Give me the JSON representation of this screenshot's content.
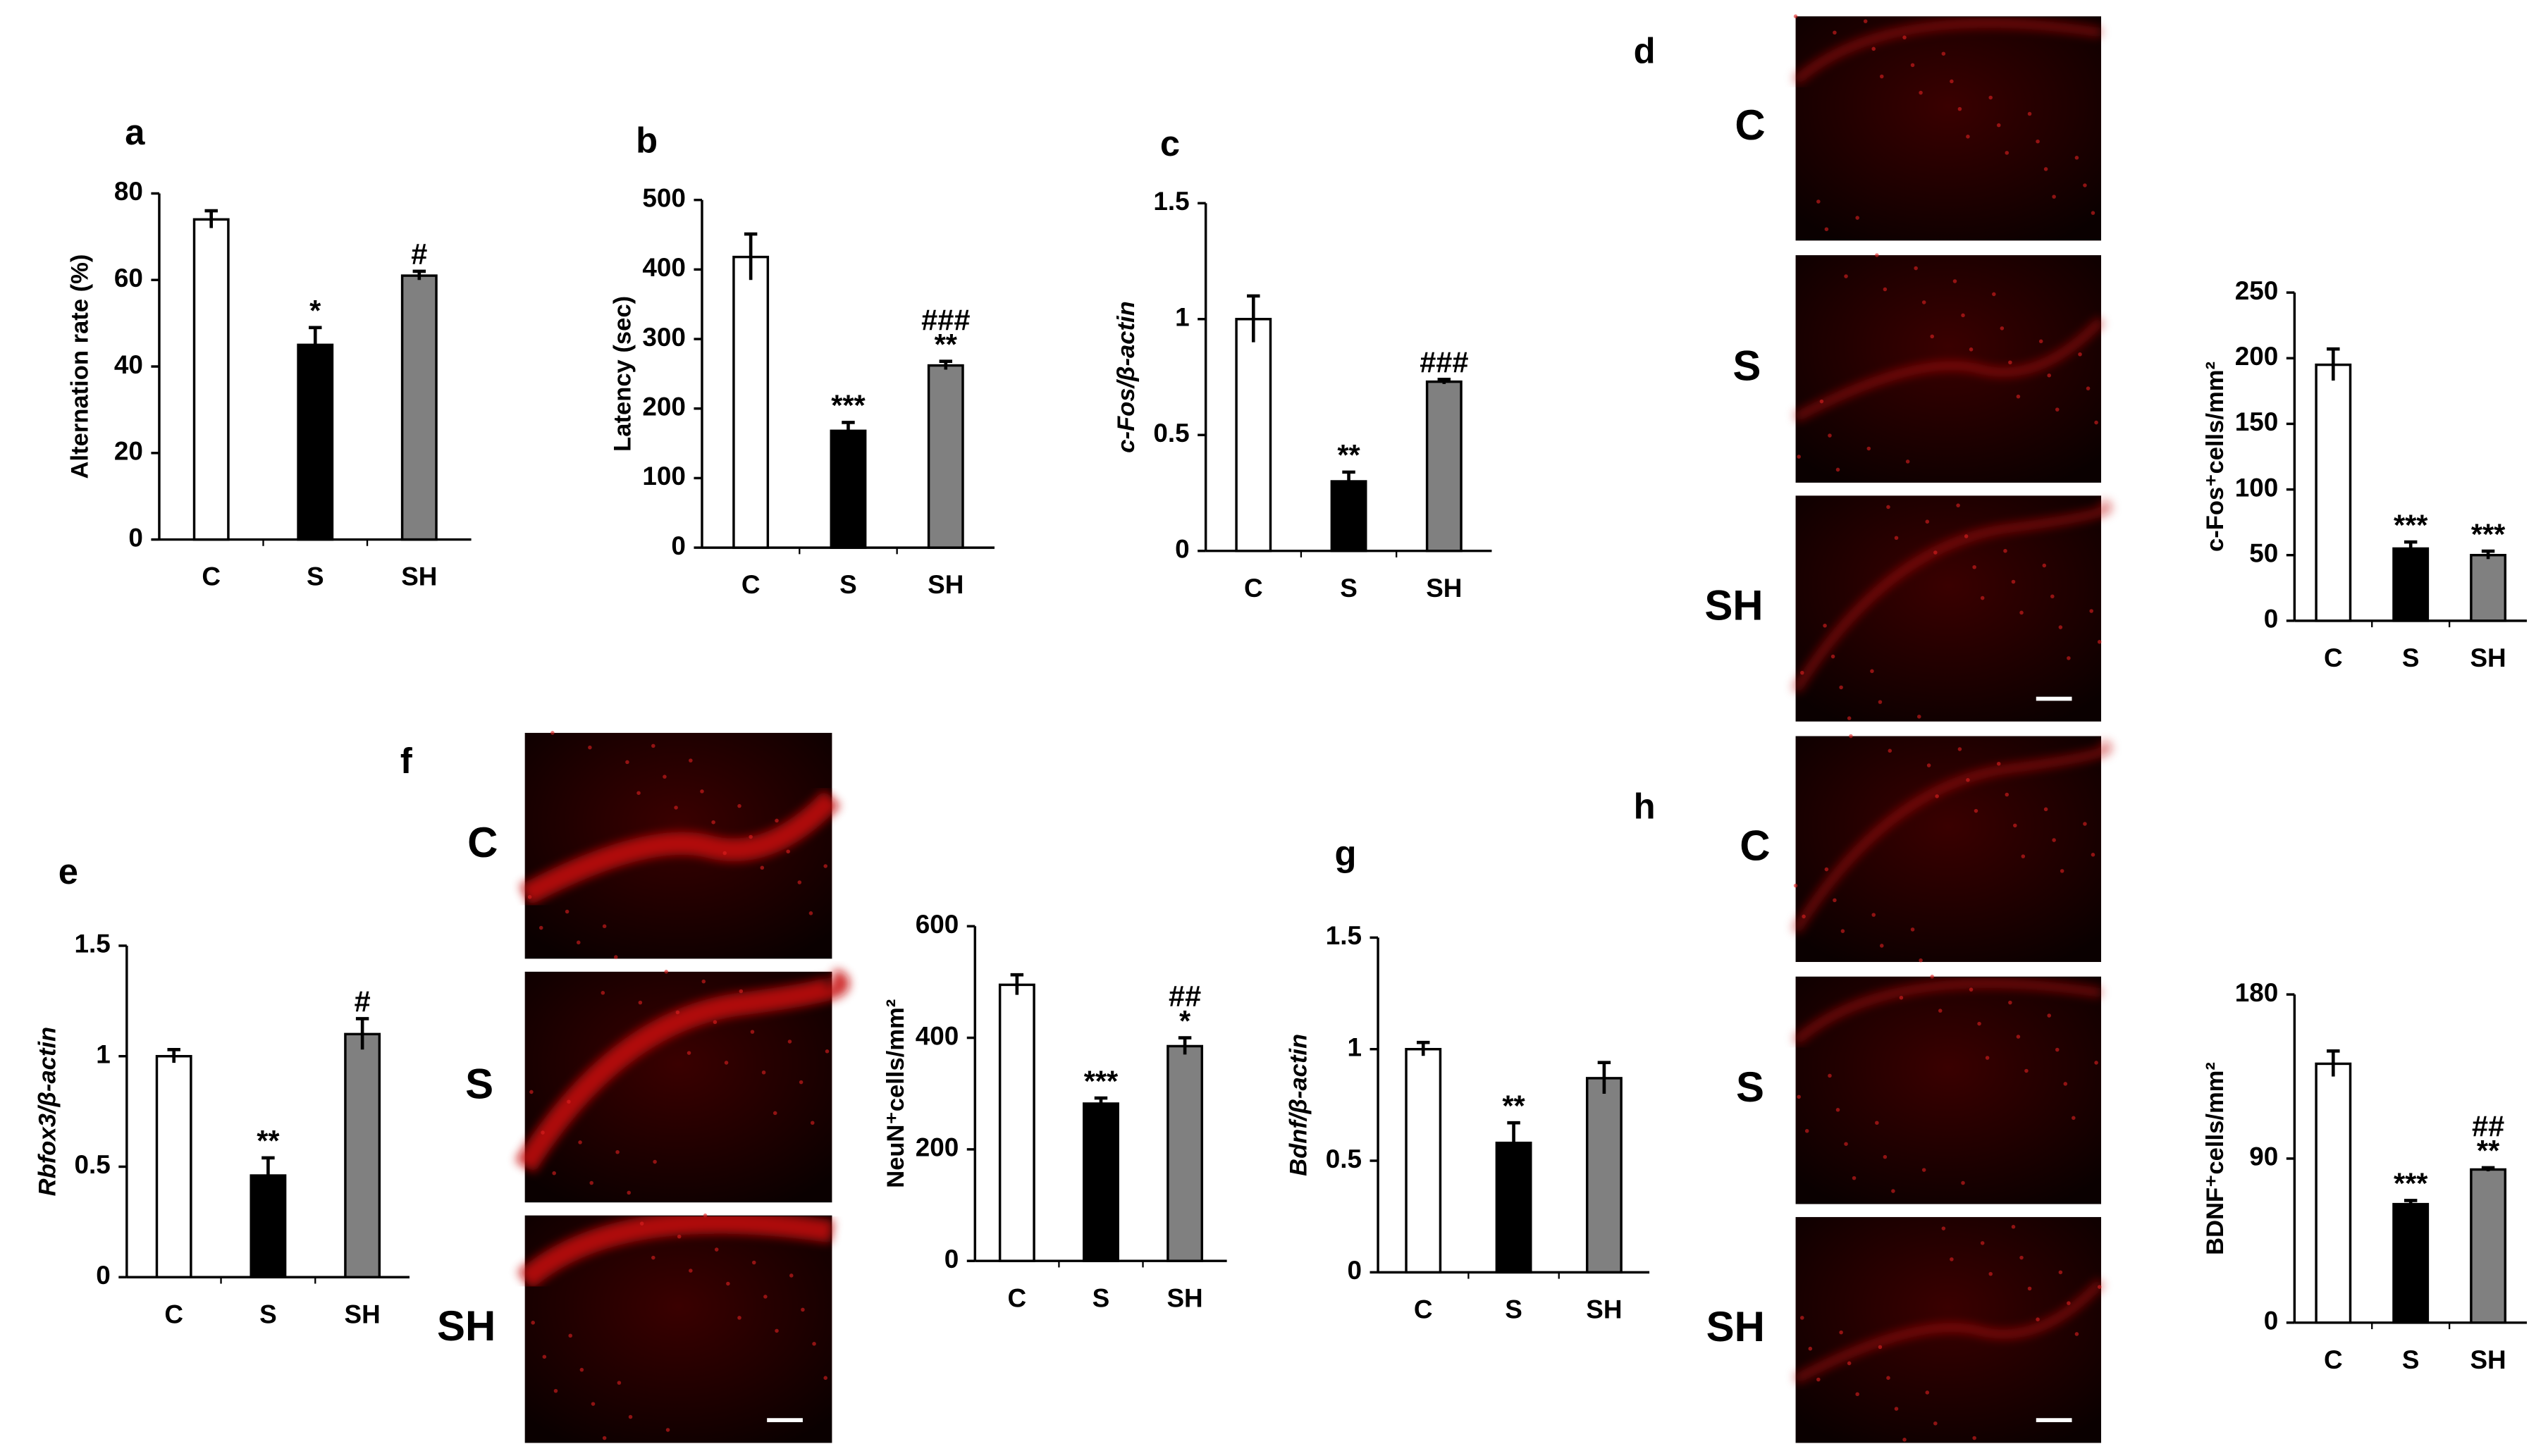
{
  "chart_data": [
    {
      "type": "bar",
      "panel": "a",
      "ylabel": "Alternation rate (%)",
      "ylabel_italic": false,
      "categories": [
        "C",
        "S",
        "SH"
      ],
      "values": [
        74,
        45,
        61
      ],
      "errors": [
        2,
        4,
        1
      ],
      "annotations": [
        null,
        [
          "*"
        ],
        [
          "#"
        ]
      ],
      "colors": [
        "#ffffff",
        "#000000",
        "#808080"
      ],
      "ylim": [
        0,
        80
      ],
      "yticks": [
        0,
        20,
        40,
        60,
        80
      ]
    },
    {
      "type": "bar",
      "panel": "b",
      "ylabel": "Latency (sec)",
      "ylabel_italic": false,
      "categories": [
        "C",
        "S",
        "SH"
      ],
      "values": [
        418,
        168,
        262
      ],
      "errors": [
        33,
        12,
        6
      ],
      "annotations": [
        null,
        [
          "***"
        ],
        [
          "###",
          "**"
        ]
      ],
      "colors": [
        "#ffffff",
        "#000000",
        "#808080"
      ],
      "ylim": [
        0,
        500
      ],
      "yticks": [
        0,
        100,
        200,
        300,
        400,
        500
      ]
    },
    {
      "type": "bar",
      "panel": "c",
      "ylabel": "c-Fos/β-actin",
      "ylabel_italic": true,
      "categories": [
        "C",
        "S",
        "SH"
      ],
      "values": [
        1.0,
        0.3,
        0.73
      ],
      "errors": [
        0.1,
        0.04,
        0.01
      ],
      "annotations": [
        null,
        [
          "**"
        ],
        [
          "###"
        ]
      ],
      "colors": [
        "#ffffff",
        "#000000",
        "#808080"
      ],
      "ylim": [
        0,
        1.5
      ],
      "yticks": [
        0,
        0.5,
        1,
        1.5
      ]
    },
    {
      "type": "bar",
      "panel": "d",
      "ylabel": "c-Fos⁺cells/mm²",
      "ylabel_italic": false,
      "categories": [
        "C",
        "S",
        "SH"
      ],
      "values": [
        195,
        55,
        50
      ],
      "errors": [
        12,
        5,
        3
      ],
      "annotations": [
        null,
        [
          "***"
        ],
        [
          "***"
        ]
      ],
      "colors": [
        "#ffffff",
        "#000000",
        "#808080"
      ],
      "ylim": [
        0,
        250
      ],
      "yticks": [
        0,
        50,
        100,
        150,
        200,
        250
      ]
    },
    {
      "type": "bar",
      "panel": "e",
      "ylabel": "Rbfox3/β-actin",
      "ylabel_italic": true,
      "categories": [
        "C",
        "S",
        "SH"
      ],
      "values": [
        1.0,
        0.46,
        1.1
      ],
      "errors": [
        0.03,
        0.08,
        0.07
      ],
      "annotations": [
        null,
        [
          "**"
        ],
        [
          "#"
        ]
      ],
      "colors": [
        "#ffffff",
        "#000000",
        "#808080"
      ],
      "ylim": [
        0,
        1.5
      ],
      "yticks": [
        0,
        0.5,
        1,
        1.5
      ]
    },
    {
      "type": "bar",
      "panel": "f",
      "ylabel": "NeuN⁺cells/mm²",
      "ylabel_italic": false,
      "categories": [
        "C",
        "S",
        "SH"
      ],
      "values": [
        495,
        282,
        385
      ],
      "errors": [
        18,
        10,
        15
      ],
      "annotations": [
        null,
        [
          "***"
        ],
        [
          "##",
          "*"
        ]
      ],
      "colors": [
        "#ffffff",
        "#000000",
        "#808080"
      ],
      "ylim": [
        0,
        600
      ],
      "yticks": [
        0,
        200,
        400,
        600
      ]
    },
    {
      "type": "bar",
      "panel": "g",
      "ylabel": "Bdnf/β-actin",
      "ylabel_italic": true,
      "categories": [
        "C",
        "S",
        "SH"
      ],
      "values": [
        1.0,
        0.58,
        0.87
      ],
      "errors": [
        0.03,
        0.09,
        0.07
      ],
      "annotations": [
        null,
        [
          "**"
        ],
        null
      ],
      "colors": [
        "#ffffff",
        "#000000",
        "#808080"
      ],
      "ylim": [
        0,
        1.5
      ],
      "yticks": [
        0,
        0.5,
        1,
        1.5
      ]
    },
    {
      "type": "bar",
      "panel": "h",
      "ylabel": "BDNF⁺cells/mm²",
      "ylabel_italic": false,
      "categories": [
        "C",
        "S",
        "SH"
      ],
      "values": [
        142,
        65,
        84
      ],
      "errors": [
        7,
        2,
        1
      ],
      "annotations": [
        null,
        [
          "***"
        ],
        [
          "##",
          "**"
        ]
      ],
      "colors": [
        "#ffffff",
        "#000000",
        "#808080"
      ],
      "ylim": [
        0,
        180
      ],
      "yticks": [
        0,
        90,
        180
      ]
    }
  ],
  "images": [
    {
      "rows": [
        "C",
        "S",
        "SH"
      ]
    },
    {
      "rows": [
        "C",
        "S",
        "SH"
      ]
    },
    {
      "rows": [
        "C",
        "S",
        "SH"
      ]
    }
  ]
}
